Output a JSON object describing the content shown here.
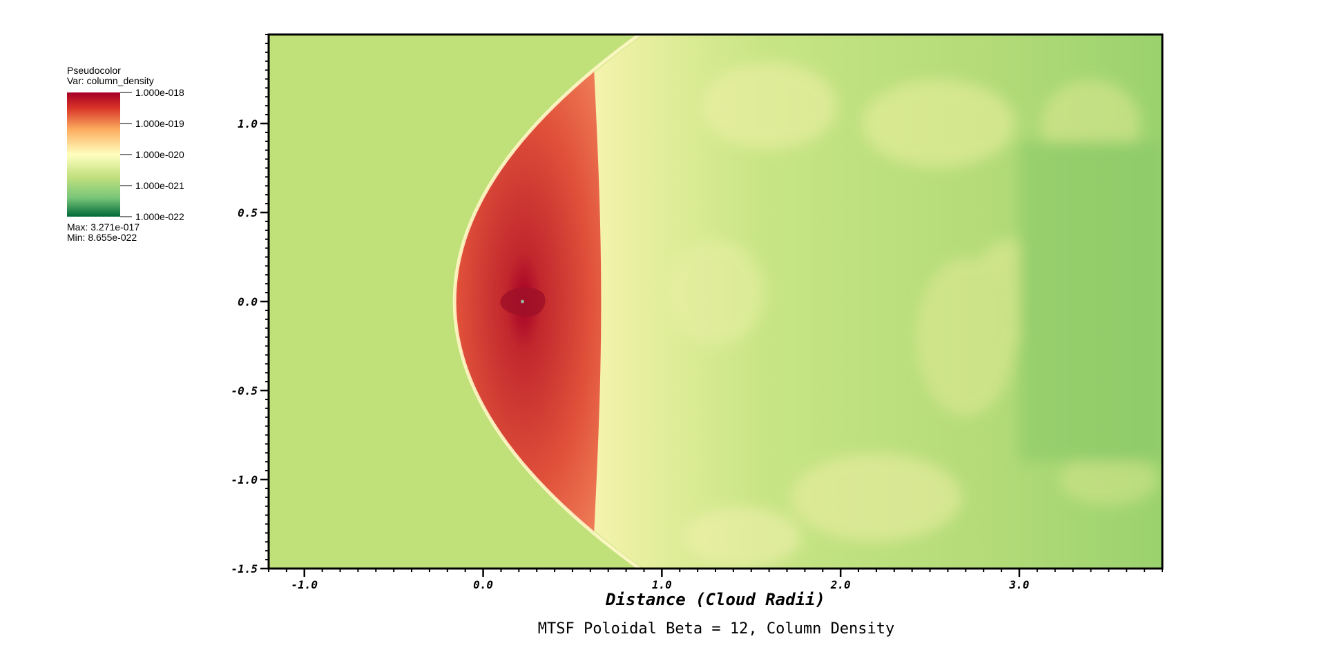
{
  "chart_data": {
    "type": "heatmap",
    "title": "MTSF Poloidal Beta = 12, Column Density",
    "xlabel": "Distance (Cloud Radii)",
    "ylabel": "",
    "xlim": [
      -1.2,
      3.8
    ],
    "ylim": [
      -1.5,
      1.5
    ],
    "x_ticks": [
      "-1.0",
      "0.0",
      "1.0",
      "2.0",
      "3.0"
    ],
    "x_tick_values": [
      -1.0,
      0.0,
      1.0,
      2.0,
      3.0
    ],
    "y_ticks": [
      "1.0",
      "0.5",
      "0.0",
      "-0.5",
      "-1.0",
      "-1.5"
    ],
    "y_tick_values": [
      1.0,
      0.5,
      0.0,
      -0.5,
      -1.0,
      -1.5
    ],
    "grid": false,
    "colormap": [
      "#006837",
      "#78c679",
      "#ffffbf",
      "#fdae61",
      "#a50026"
    ],
    "legend": {
      "placement": "left",
      "plot_type": "Pseudocolor",
      "variable": "Var: column_density",
      "labels": [
        "1.000e-018",
        "1.000e-019",
        "1.000e-020",
        "1.000e-021",
        "1.000e-022"
      ],
      "max_text": "Max:  3.271e-017",
      "min_text": "Min:  8.655e-022"
    },
    "features": {
      "bow_shock_apex_x": -0.16,
      "cloud_center": [
        0.22,
        0.0
      ]
    }
  }
}
